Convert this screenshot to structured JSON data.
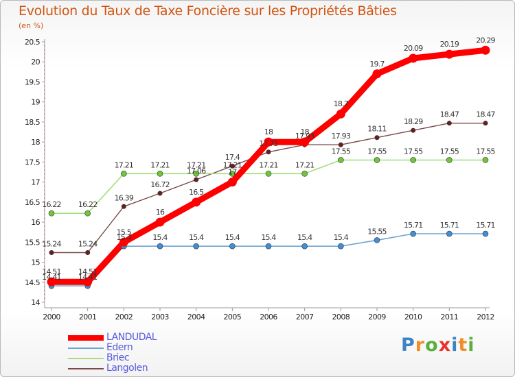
{
  "title": "Evolution du Taux de Taxe Foncière sur les Propriétés Bâties",
  "subtitle": "(en %)",
  "brand": {
    "letters": [
      "P",
      "r",
      "o",
      "x",
      "i",
      "t",
      "i"
    ],
    "colors": [
      "#3d83c4",
      "#f28c28",
      "#5ab03c",
      "#e8322e",
      "#3d83c4",
      "#f28c28",
      "#5ab03c"
    ]
  },
  "chart_data": {
    "type": "line",
    "title": "Evolution du Taux de Taxe Foncière sur les Propriétés Bâties",
    "ylabel": "(en %)",
    "xlabel": "",
    "ylim": [
      14,
      20.5
    ],
    "yticks": [
      "14",
      "14.5",
      "15",
      "15.5",
      "16",
      "16.5",
      "17",
      "17.5",
      "18",
      "18.5",
      "19",
      "19.5",
      "20",
      "20.5"
    ],
    "x": [
      "2000",
      "2001",
      "2002",
      "2003",
      "2004",
      "2005",
      "2006",
      "2007",
      "2008",
      "2009",
      "2010",
      "2011",
      "2012"
    ],
    "grid": false,
    "legend": "bottom-left",
    "series": [
      {
        "name": "LANDUDAL",
        "color": "#ff0000",
        "marker": "#ff0000",
        "values": [
          14.51,
          14.51,
          15.5,
          16,
          16.5,
          17,
          18,
          18,
          18.7,
          19.7,
          20.09,
          20.19,
          20.29
        ],
        "labels": [
          "14.51",
          "14.51",
          "15.5",
          "16",
          "16.5",
          "17",
          "18",
          "18",
          "18.7",
          "19.7",
          "20.09",
          "20.19",
          "20.29"
        ]
      },
      {
        "name": "Edern",
        "color": "#6ea4d2",
        "marker": "#3f8fd6",
        "values": [
          14.41,
          14.41,
          15.4,
          15.4,
          15.4,
          15.4,
          15.4,
          15.4,
          15.4,
          15.55,
          15.71,
          15.71,
          15.71
        ],
        "labels": [
          "14.41",
          "14.41",
          "15.4",
          "15.4",
          "15.4",
          "15.4",
          "15.4",
          "15.4",
          "15.4",
          "15.55",
          "15.71",
          "15.71",
          "15.71"
        ]
      },
      {
        "name": "Briec",
        "color": "#a4de7c",
        "marker": "#6fc63a",
        "values": [
          16.22,
          16.22,
          17.21,
          17.21,
          17.21,
          17.21,
          17.21,
          17.21,
          17.55,
          17.55,
          17.55,
          17.55,
          17.55
        ],
        "labels": [
          "16.22",
          "16.22",
          "17.21",
          "17.21",
          "17.21",
          "17.21",
          "17.21",
          "17.21",
          "17.55",
          "17.55",
          "17.55",
          "17.55",
          "17.55"
        ]
      },
      {
        "name": "Langolen",
        "color": "#7a4a4a",
        "marker": "#6a1e1e",
        "values": [
          15.24,
          15.24,
          16.39,
          16.72,
          17.06,
          17.4,
          17.75,
          17.93,
          17.93,
          18.11,
          18.29,
          18.47,
          18.47
        ],
        "labels": [
          "15.24",
          "15.24",
          "16.39",
          "16.72",
          "17.06",
          "17.4",
          "17.75",
          "17.93",
          "17.93",
          "18.11",
          "18.29",
          "18.47",
          "18.47"
        ]
      }
    ]
  }
}
